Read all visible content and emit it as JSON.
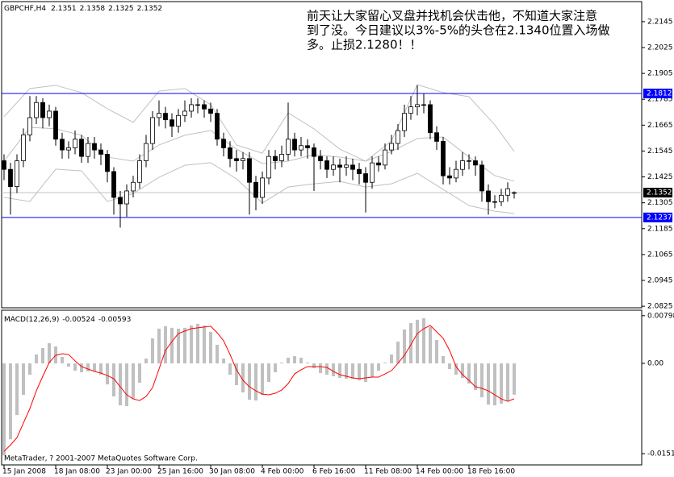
{
  "chart_data": [
    {
      "type": "candlestick",
      "title": "GBPCHF,H4",
      "x": [
        0,
        2,
        4,
        6,
        8,
        10,
        12,
        14,
        16,
        18,
        20,
        22,
        24,
        26,
        28,
        30,
        32,
        34,
        36,
        38,
        40,
        42,
        44,
        46,
        48,
        50,
        52,
        54,
        56,
        58,
        60,
        62,
        64,
        66,
        68,
        70,
        72,
        74,
        76,
        78,
        80,
        82,
        84,
        86,
        88,
        90,
        92,
        94,
        96,
        98,
        100,
        102,
        104,
        106,
        108,
        110,
        112,
        114,
        116,
        118,
        120,
        122,
        124,
        126,
        128,
        130,
        132,
        134,
        136,
        138,
        140,
        142,
        144,
        146,
        148,
        150,
        152,
        154,
        156,
        158
      ],
      "open": [
        2.15,
        2.146,
        2.138,
        2.15,
        2.162,
        2.17,
        2.177,
        2.17,
        2.173,
        2.16,
        2.155,
        2.156,
        2.16,
        2.152,
        2.158,
        2.155,
        2.153,
        2.145,
        2.133,
        2.13,
        2.136,
        2.14,
        2.15,
        2.158,
        2.17,
        2.172,
        2.169,
        2.166,
        2.171,
        2.173,
        2.176,
        2.176,
        2.174,
        2.172,
        2.16,
        2.156,
        2.151,
        2.15,
        2.151,
        2.14,
        2.133,
        2.142,
        2.152,
        2.15,
        2.153,
        2.16,
        2.155,
        2.157,
        2.156,
        2.152,
        2.15,
        2.146,
        2.148,
        2.147,
        2.148,
        2.146,
        2.144,
        2.14,
        2.149,
        2.148,
        2.155,
        2.158,
        2.164,
        2.172,
        2.175,
        2.176,
        2.176,
        2.163,
        2.159,
        2.143,
        2.142,
        2.146,
        2.15,
        2.15,
        2.148,
        2.136,
        2.131,
        2.131,
        2.134,
        2.1351
      ],
      "high": [
        2.153,
        2.149,
        2.153,
        2.165,
        2.18,
        2.18,
        2.179,
        2.176,
        2.175,
        2.163,
        2.159,
        2.164,
        2.162,
        2.161,
        2.161,
        2.158,
        2.155,
        2.147,
        2.136,
        2.139,
        2.143,
        2.153,
        2.162,
        2.173,
        2.178,
        2.175,
        2.172,
        2.174,
        2.178,
        2.179,
        2.179,
        2.178,
        2.177,
        2.174,
        2.163,
        2.159,
        2.155,
        2.154,
        2.154,
        2.143,
        2.145,
        2.155,
        2.155,
        2.157,
        2.177,
        2.163,
        2.161,
        2.16,
        2.158,
        2.155,
        2.152,
        2.152,
        2.151,
        2.152,
        2.151,
        2.149,
        2.147,
        2.152,
        2.152,
        2.158,
        2.162,
        2.167,
        2.176,
        2.18,
        2.185,
        2.181,
        2.178,
        2.166,
        2.161,
        2.147,
        2.15,
        2.154,
        2.153,
        2.152,
        2.15,
        2.139,
        2.134,
        2.137,
        2.14,
        2.1358
      ],
      "low": [
        2.141,
        2.125,
        2.135,
        2.147,
        2.159,
        2.167,
        2.165,
        2.166,
        2.157,
        2.151,
        2.151,
        2.153,
        2.149,
        2.149,
        2.151,
        2.148,
        2.14,
        2.125,
        2.119,
        2.124,
        2.133,
        2.137,
        2.147,
        2.155,
        2.166,
        2.165,
        2.161,
        2.163,
        2.168,
        2.17,
        2.172,
        2.17,
        2.168,
        2.157,
        2.152,
        2.147,
        2.145,
        2.146,
        2.125,
        2.127,
        2.13,
        2.139,
        2.146,
        2.147,
        2.15,
        2.152,
        2.152,
        2.151,
        2.136,
        2.146,
        2.142,
        2.143,
        2.14,
        2.143,
        2.141,
        2.139,
        2.126,
        2.137,
        2.145,
        2.146,
        2.153,
        2.155,
        2.161,
        2.169,
        2.171,
        2.172,
        2.16,
        2.155,
        2.139,
        2.139,
        2.14,
        2.143,
        2.146,
        2.143,
        2.131,
        2.125,
        2.128,
        2.129,
        2.131,
        2.1325
      ],
      "close": [
        2.146,
        2.138,
        2.15,
        2.162,
        2.17,
        2.177,
        2.17,
        2.173,
        2.16,
        2.155,
        2.156,
        2.16,
        2.152,
        2.158,
        2.155,
        2.153,
        2.145,
        2.133,
        2.13,
        2.136,
        2.14,
        2.15,
        2.158,
        2.17,
        2.172,
        2.169,
        2.166,
        2.171,
        2.173,
        2.176,
        2.176,
        2.174,
        2.172,
        2.16,
        2.156,
        2.151,
        2.15,
        2.151,
        2.14,
        2.133,
        2.142,
        2.152,
        2.15,
        2.153,
        2.16,
        2.155,
        2.157,
        2.156,
        2.152,
        2.15,
        2.146,
        2.148,
        2.147,
        2.148,
        2.146,
        2.144,
        2.14,
        2.149,
        2.148,
        2.155,
        2.158,
        2.164,
        2.172,
        2.175,
        2.176,
        2.176,
        2.163,
        2.159,
        2.143,
        2.142,
        2.146,
        2.15,
        2.15,
        2.148,
        2.136,
        2.131,
        2.131,
        2.134,
        2.137,
        2.1352
      ],
      "bands": {
        "color": "#c0c0c0",
        "x": [
          0,
          8,
          16,
          24,
          32,
          40,
          48,
          56,
          64,
          72,
          80,
          88,
          96,
          104,
          112,
          120,
          128,
          136,
          144,
          152,
          158
        ],
        "upper": [
          2.1704,
          2.1835,
          2.185,
          2.1816,
          2.1741,
          2.1678,
          2.1823,
          2.1835,
          2.176,
          2.1573,
          2.1535,
          2.1722,
          2.1648,
          2.1554,
          2.1498,
          2.1592,
          2.1853,
          2.1816,
          2.1797,
          2.1666,
          2.1543
        ],
        "middle": [
          2.1498,
          2.1655,
          2.1648,
          2.1618,
          2.1517,
          2.1498,
          2.1573,
          2.1618,
          2.164,
          2.1554,
          2.1487,
          2.1498,
          2.1528,
          2.1517,
          2.1498,
          2.1543,
          2.1603,
          2.161,
          2.1517,
          2.1431,
          2.1405
        ],
        "lower": [
          2.133,
          2.1311,
          2.1461,
          2.1453,
          2.1311,
          2.1348,
          2.1423,
          2.1479,
          2.1491,
          2.1416,
          2.1304,
          2.1378,
          2.1393,
          2.1404,
          2.1378,
          2.1393,
          2.1442,
          2.1367,
          2.1292,
          2.1266,
          2.1255
        ]
      },
      "levels": {
        "color": "#0000ff",
        "values": [
          2.1812,
          2.1237
        ]
      },
      "price_line_color": "#c0c0c0",
      "xlim": [
        -0.75,
        197.5
      ],
      "ylim": [
        2.0818,
        2.2238
      ],
      "yticks": [
        2.2145,
        2.2025,
        2.1905,
        2.1785,
        2.1665,
        2.1545,
        2.1425,
        2.1305,
        2.1185,
        2.1065,
        2.0945,
        2.0825
      ]
    },
    {
      "type": "macd",
      "title": "MACD(12,26,9)",
      "histogram": {
        "color": "#c0c0c0",
        "values": [
          -0.01541,
          -0.01271,
          -0.00865,
          -0.00527,
          -0.00189,
          0.00149,
          0.00257,
          0.00338,
          0.00284,
          0.00108,
          -0.00054,
          -0.00122,
          -0.00149,
          -0.00135,
          -0.00135,
          -0.00189,
          -0.00352,
          -0.00554,
          -0.00703,
          -0.00717,
          -0.00595,
          -0.00324,
          0.00081,
          0.00419,
          0.00581,
          0.00622,
          0.00595,
          0.00581,
          0.00595,
          0.00635,
          0.00662,
          0.00635,
          0.00527,
          0.00311,
          0.00081,
          -0.00189,
          -0.00365,
          -0.00487,
          -0.00608,
          -0.00622,
          -0.00527,
          -0.00311,
          -0.00149,
          0.00014,
          0.00095,
          0.00122,
          0.00095,
          0.00014,
          -0.00081,
          -0.00162,
          -0.00189,
          -0.00216,
          -0.00243,
          -0.00257,
          -0.00257,
          -0.00284,
          -0.00311,
          -0.0023,
          -0.00122,
          0.00014,
          0.00149,
          0.00365,
          0.00568,
          0.00676,
          0.0073,
          0.00757,
          0.00608,
          0.00392,
          0.00122,
          -0.00095,
          -0.00189,
          -0.00243,
          -0.00338,
          -0.00446,
          -0.00568,
          -0.0069,
          -0.00703,
          -0.00676,
          -0.00635,
          -0.00524
        ]
      },
      "signal": {
        "color": "#ff0000",
        "values": [
          -0.01474,
          -0.01366,
          -0.01244,
          -0.01,
          -0.00757,
          -0.0046,
          -0.00216,
          0.00014,
          0.00135,
          0.00162,
          0.00149,
          0.00041,
          -0.00054,
          -0.00095,
          -0.00135,
          -0.00162,
          -0.00203,
          -0.00257,
          -0.00392,
          -0.00527,
          -0.00595,
          -0.00622,
          -0.00554,
          -0.00406,
          -0.00095,
          0.00216,
          0.00365,
          0.005,
          0.00541,
          0.00581,
          0.00595,
          0.00608,
          0.00622,
          0.00514,
          0.00379,
          0.00149,
          -0.00108,
          -0.00284,
          -0.00392,
          -0.0046,
          -0.00514,
          -0.00527,
          -0.005,
          -0.00446,
          -0.00338,
          -0.00176,
          -0.00108,
          -0.00054,
          -0.00054,
          -0.00054,
          -0.00068,
          -0.00135,
          -0.00189,
          -0.00216,
          -0.00243,
          -0.00257,
          -0.00243,
          -0.0023,
          -0.0023,
          -0.00176,
          -0.00122,
          0,
          0.00135,
          0.00311,
          0.005,
          0.00581,
          0.00635,
          0.00527,
          0.00419,
          0.00216,
          -0.00054,
          -0.00189,
          -0.00284,
          -0.00392,
          -0.00419,
          -0.0046,
          -0.00527,
          -0.00595,
          -0.00635,
          -0.00593
        ]
      },
      "xlim": [
        -0.75,
        197.5
      ],
      "ylim": [
        -0.017,
        0.0089
      ],
      "yticks": [
        0.00798,
        {
          "value": 0,
          "label": "0.00"
        },
        -0.01511
      ],
      "xticks": [
        {
          "value": 0,
          "label": "15 Jan 2008"
        },
        {
          "value": 16,
          "label": "18 Jan 08:00"
        },
        {
          "value": 32,
          "label": "23 Jan 00:00"
        },
        {
          "value": 48,
          "label": "25 Jan 16:00"
        },
        {
          "value": 64,
          "label": "30 Jan 08:00"
        },
        {
          "value": 80,
          "label": "4 Feb 00:00"
        },
        {
          "value": 96,
          "label": "6 Feb 16:00"
        },
        {
          "value": 112,
          "label": "11 Feb 08:00"
        },
        {
          "value": 128,
          "label": "14 Feb 00:00"
        },
        {
          "value": 144,
          "label": "18 Feb 16:00"
        }
      ]
    }
  ],
  "annotation": {
    "lines": [
      "前天让大家留心叉盘并找机会伏击他，不知道大家注意",
      "到了没。今日建议以3%-5%的头仓在2.1340位置入场做",
      "多。止损2.1280！！"
    ]
  },
  "footer": "MetaTrader, ? 2001-2007 MetaQuotes Software Corp."
}
